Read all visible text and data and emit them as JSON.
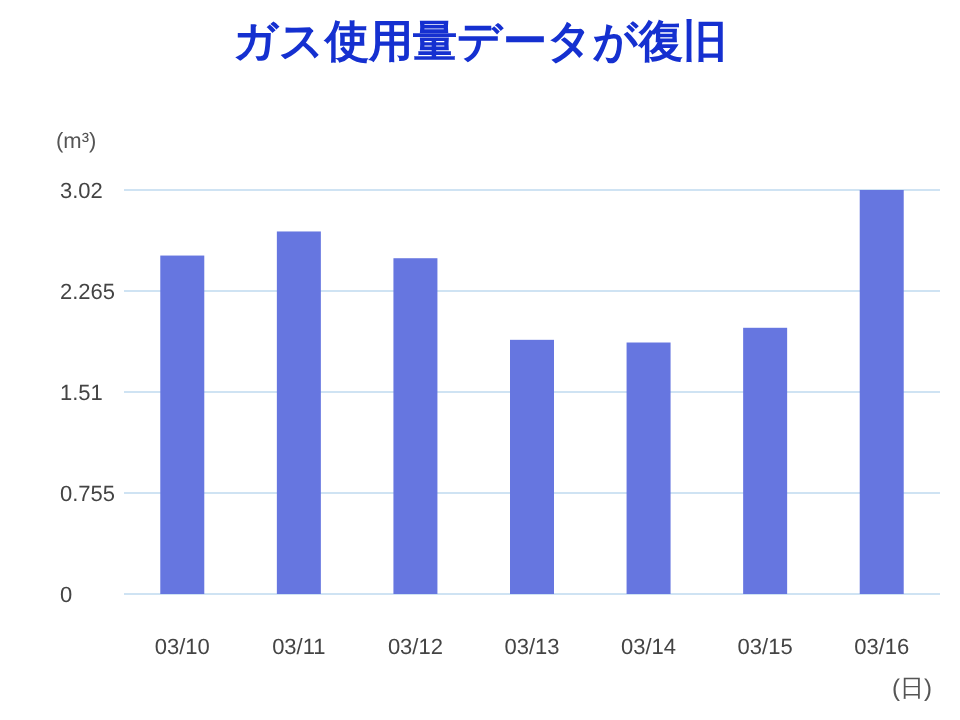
{
  "chart_data": {
    "type": "bar",
    "title": "ガス使用量データが復旧",
    "ylabel": "(m³)",
    "xlabel": "(日)",
    "categories": [
      "03/10",
      "03/11",
      "03/12",
      "03/13",
      "03/14",
      "03/15",
      "03/16"
    ],
    "values": [
      2.53,
      2.71,
      2.51,
      1.9,
      1.88,
      1.99,
      3.02
    ],
    "color": "#6676e0",
    "ylim": [
      0,
      3.02
    ],
    "yticks": [
      0,
      0.755,
      1.51,
      2.265,
      3.02
    ],
    "grid": "y"
  }
}
